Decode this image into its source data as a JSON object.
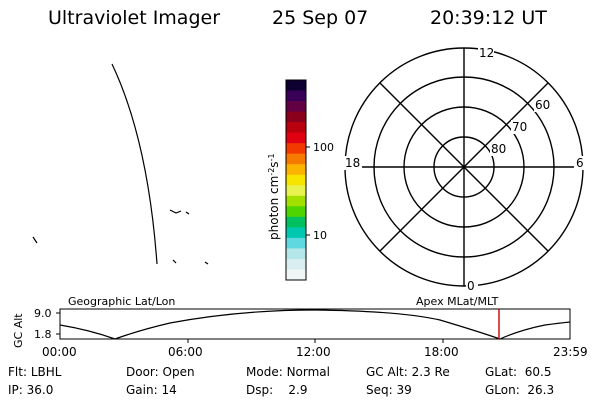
{
  "header": {
    "instrument": "Ultraviolet Imager",
    "date": "25 Sep 07",
    "time": "20:39:12 UT"
  },
  "colorbar": {
    "label": "photon cm",
    "label_exp1": "-2",
    "label_mid": "s",
    "label_exp2": "-1",
    "ticks": [
      "100",
      "10"
    ],
    "colors": [
      "#0d0030",
      "#3a0057",
      "#620043",
      "#8a001c",
      "#b8000f",
      "#e00012",
      "#f23a00",
      "#f77a00",
      "#fbb400",
      "#f7e500",
      "#e8f250",
      "#a2e000",
      "#4ed400",
      "#00c060",
      "#00c8b0",
      "#60d8e0",
      "#b4e6ea",
      "#d8eef0",
      "#f0f6f6"
    ]
  },
  "polar": {
    "mlt_labels": {
      "top": "12",
      "bottom": "0",
      "left": "18",
      "right": "6"
    },
    "lat_labels": [
      "80",
      "70",
      "60"
    ]
  },
  "track": {
    "ylabel": "GC Alt",
    "yticks": [
      "9.0",
      "1.8"
    ],
    "title_left": "Geographic Lat/Lon",
    "title_right": "Apex MLat/MLT",
    "xticks": [
      "00:00",
      "06:00",
      "12:00",
      "18:00",
      "23:59"
    ],
    "marker_color": "#cc0000"
  },
  "status": {
    "row1": [
      {
        "key": "Flt:",
        "val": "LBHL"
      },
      {
        "key": "Door:",
        "val": "Open"
      },
      {
        "key": "Mode:",
        "val": "Normal"
      },
      {
        "key": "GC Alt:",
        "val": "2.3 Re"
      },
      {
        "key": "GLat:",
        "val": "60.5"
      }
    ],
    "row2": [
      {
        "key": "IP:",
        "val": "36.0"
      },
      {
        "key": "Gain:",
        "val": "14"
      },
      {
        "key": "Dsp:",
        "val": "2.9"
      },
      {
        "key": "Seq:",
        "val": "39"
      },
      {
        "key": "GLon:",
        "val": "26.3"
      }
    ]
  }
}
